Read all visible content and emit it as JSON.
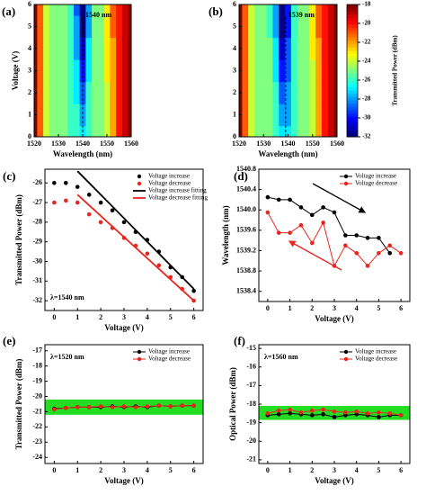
{
  "chart_data": [
    {
      "type": "heatmap",
      "panel": "(a)",
      "xlabel": "Wavelength (nm)",
      "ylabel": "Voltage (V)",
      "annotation": "1540 nm",
      "marker_x": 1540,
      "xlim": [
        1520,
        1560
      ],
      "xticks": [
        1520,
        1530,
        1540,
        1550,
        1560
      ],
      "ylim": [
        0,
        6
      ],
      "yticks": [
        0,
        1,
        2,
        3,
        4,
        5,
        6
      ],
      "colormap": "jet",
      "zlim": [
        -32,
        -18
      ],
      "x": [
        1520,
        1522.5,
        1525,
        1527.5,
        1530,
        1532.5,
        1535,
        1537.5,
        1540,
        1542.5,
        1545,
        1547.5,
        1550,
        1552.5,
        1555,
        1557.5,
        1560
      ],
      "y": [
        0,
        1,
        2,
        3,
        4,
        5,
        6
      ],
      "z": [
        [
          -18,
          -21,
          -24,
          -25,
          -25,
          -25,
          -26,
          -26,
          -27,
          -26,
          -25,
          -25,
          -24,
          -22,
          -20,
          -19,
          -18
        ],
        [
          -18,
          -21,
          -24,
          -25,
          -25,
          -25,
          -26,
          -26,
          -28,
          -26,
          -25,
          -25,
          -24,
          -22,
          -20,
          -19,
          -18
        ],
        [
          -18,
          -21,
          -24,
          -25,
          -25,
          -25,
          -26,
          -27,
          -29,
          -26,
          -25,
          -25,
          -24,
          -22,
          -20,
          -19,
          -18
        ],
        [
          -18,
          -21,
          -24,
          -25,
          -25,
          -25,
          -26,
          -27,
          -30,
          -27,
          -25,
          -25,
          -23,
          -22,
          -20,
          -19,
          -18
        ],
        [
          -18,
          -21,
          -24,
          -25,
          -25,
          -25,
          -26,
          -28,
          -31,
          -27,
          -25,
          -25,
          -23,
          -22,
          -20,
          -19,
          -18
        ],
        [
          -18,
          -21,
          -24,
          -25,
          -25,
          -25,
          -26,
          -28,
          -32,
          -28,
          -25,
          -25,
          -23,
          -21,
          -20,
          -19,
          -18
        ],
        [
          -18,
          -21,
          -24,
          -25,
          -25,
          -25,
          -26,
          -29,
          -32,
          -28,
          -25,
          -25,
          -23,
          -21,
          -20,
          -19,
          -18
        ]
      ]
    },
    {
      "type": "heatmap",
      "panel": "(b)",
      "xlabel": "Wavelength (nm)",
      "annotation": "1539 nm",
      "marker_x": 1539,
      "xlim": [
        1520,
        1560
      ],
      "xticks": [
        1520,
        1530,
        1540,
        1550,
        1560
      ],
      "ylim": [
        0,
        6
      ],
      "yticks": [
        0,
        1,
        2,
        3,
        4,
        5,
        6
      ],
      "colormap": "jet",
      "zlim": [
        -32,
        -18
      ],
      "colorbar_label": "Transmitted Power (dBm)",
      "zticks": [
        -18,
        -20,
        -22,
        -24,
        -26,
        -28,
        -30,
        -32
      ],
      "x": [
        1520,
        1522.5,
        1525,
        1527.5,
        1530,
        1532.5,
        1535,
        1537.5,
        1540,
        1542.5,
        1545,
        1547.5,
        1550,
        1552.5,
        1555,
        1557.5,
        1560
      ],
      "y": [
        0,
        1,
        2,
        3,
        4,
        5,
        6
      ],
      "z": [
        [
          -18,
          -21,
          -24,
          -25,
          -25,
          -25,
          -26,
          -27,
          -27,
          -26,
          -25,
          -25,
          -24,
          -22,
          -20,
          -19,
          -18
        ],
        [
          -18,
          -21,
          -24,
          -25,
          -25,
          -25,
          -26,
          -28,
          -28,
          -26,
          -25,
          -25,
          -24,
          -22,
          -20,
          -19,
          -18
        ],
        [
          -18,
          -21,
          -24,
          -25,
          -25,
          -25,
          -26,
          -29,
          -28,
          -26,
          -25,
          -25,
          -24,
          -22,
          -20,
          -19,
          -18
        ],
        [
          -18,
          -21,
          -24,
          -25,
          -25,
          -25,
          -27,
          -30,
          -29,
          -26,
          -25,
          -25,
          -24,
          -22,
          -20,
          -19,
          -18
        ],
        [
          -18,
          -21,
          -24,
          -25,
          -25,
          -25,
          -27,
          -31,
          -29,
          -26,
          -25,
          -25,
          -23,
          -22,
          -20,
          -19,
          -18
        ],
        [
          -18,
          -21,
          -24,
          -25,
          -25,
          -26,
          -28,
          -32,
          -30,
          -26,
          -25,
          -25,
          -23,
          -21,
          -20,
          -19,
          -18
        ],
        [
          -18,
          -21,
          -24,
          -25,
          -25,
          -26,
          -28,
          -32,
          -30,
          -26,
          -25,
          -25,
          -23,
          -21,
          -20,
          -19,
          -18
        ]
      ]
    },
    {
      "type": "line",
      "panel": "(c)",
      "xlabel": "Voltage (V)",
      "ylabel": "Transmitted Power (dBm)",
      "annotation": "λ=1540 nm",
      "legend": "upper right",
      "xlim": [
        -0.4,
        6.4
      ],
      "xticks": [
        0,
        1,
        2,
        3,
        4,
        5,
        6
      ],
      "ylim": [
        -32.5,
        -25.3
      ],
      "yticks": [
        -32,
        -31,
        -30,
        -29,
        -28,
        -27,
        -26
      ],
      "series": [
        {
          "name": "Voltage increase",
          "color": "#000000",
          "mode": "markers",
          "x": [
            0,
            0.5,
            1,
            1.5,
            2,
            2.5,
            3,
            3.5,
            4,
            4.5,
            5,
            5.5,
            6
          ],
          "values": [
            -26,
            -26,
            -26.2,
            -26.6,
            -27,
            -27.4,
            -28,
            -28.5,
            -28.9,
            -29.5,
            -30.3,
            -30.8,
            -31.5
          ]
        },
        {
          "name": "Voltage decrease",
          "color": "#e8251f",
          "mode": "markers",
          "x": [
            0,
            0.5,
            1,
            1.5,
            2,
            2.5,
            3,
            3.5,
            4,
            4.5,
            5,
            5.5,
            6
          ],
          "values": [
            -27,
            -26.9,
            -27,
            -27.6,
            -28,
            -28.3,
            -28.8,
            -29.2,
            -29.6,
            -30.2,
            -30.8,
            -31.4,
            -32
          ]
        },
        {
          "name": "Voltage increase fitting",
          "color": "#000000",
          "mode": "lines",
          "x": [
            1,
            6
          ],
          "values": [
            -25.4,
            -31.4
          ]
        },
        {
          "name": "Voltage decrease fitting",
          "color": "#e8251f",
          "mode": "lines",
          "x": [
            1,
            6
          ],
          "values": [
            -26.6,
            -32
          ]
        }
      ]
    },
    {
      "type": "line",
      "panel": "(d)",
      "xlabel": "Voltage (V)",
      "ylabel": "Wavelength (nm)",
      "legend": "upper right",
      "xlim": [
        -0.4,
        6.4
      ],
      "xticks": [
        0,
        1,
        2,
        3,
        4,
        5,
        6
      ],
      "ylim": [
        1538.2,
        1540.8
      ],
      "yticks": [
        1538.4,
        1538.8,
        1539.2,
        1539.6,
        {
          "value": 1540,
          "label": "1540.0"
        },
        1540.4,
        1540.8
      ],
      "series": [
        {
          "name": "Voltage increase",
          "color": "#000000",
          "mode": "lines+markers",
          "x": [
            0,
            0.5,
            1,
            1.5,
            2,
            2.5,
            3,
            3.5,
            4,
            4.5,
            5,
            5.5
          ],
          "values": [
            1540.25,
            1540.2,
            1540.2,
            1540.05,
            1539.9,
            1540.05,
            1539.95,
            1539.5,
            1539.5,
            1539.45,
            1539.45,
            1539.15
          ]
        },
        {
          "name": "Voltage decrease",
          "color": "#e8251f",
          "mode": "lines+markers",
          "x": [
            0,
            0.5,
            1,
            1.5,
            2,
            2.5,
            3,
            3.5,
            4,
            4.5,
            5,
            5.5,
            6
          ],
          "values": [
            1539.95,
            1539.55,
            1539.55,
            1539.7,
            1539.35,
            1539.75,
            1538.9,
            1539.3,
            1539.15,
            1538.9,
            1539.15,
            1539.3,
            1539.15
          ]
        }
      ]
    },
    {
      "type": "line",
      "panel": "(e)",
      "xlabel": "Voltage (V)",
      "ylabel": "Transmitted Power (dBm)",
      "annotation": "λ=1520 nm",
      "legend": "upper right",
      "band": [
        -21.2,
        -20.2
      ],
      "band_color": "#22dd22",
      "xlim": [
        -0.4,
        6.4
      ],
      "xticks": [
        0,
        1,
        2,
        3,
        4,
        5,
        6
      ],
      "ylim": [
        -24.4,
        -16.6
      ],
      "yticks": [
        -24,
        -23,
        -22,
        -21,
        -20,
        -19,
        -18,
        -17
      ],
      "series": [
        {
          "name": "Voltage increase",
          "color": "#000000",
          "mode": "lines+markers",
          "x": [
            0,
            0.5,
            1,
            1.5,
            2,
            2.5,
            3,
            3.5,
            4,
            4.5,
            5,
            5.5,
            6
          ],
          "values": [
            -20.8,
            -20.75,
            -20.7,
            -20.7,
            -20.7,
            -20.65,
            -20.7,
            -20.65,
            -20.7,
            -20.6,
            -20.65,
            -20.6,
            -20.6
          ]
        },
        {
          "name": "Voltage decrease",
          "color": "#e8251f",
          "mode": "lines+markers",
          "x": [
            0,
            0.5,
            1,
            1.5,
            2,
            2.5,
            3,
            3.5,
            4,
            4.5,
            5,
            5.5,
            6
          ],
          "values": [
            -20.85,
            -20.75,
            -20.7,
            -20.7,
            -20.65,
            -20.7,
            -20.65,
            -20.7,
            -20.65,
            -20.6,
            -20.65,
            -20.6,
            -20.6
          ]
        }
      ]
    },
    {
      "type": "line",
      "panel": "(f)",
      "xlabel": "Voltage (V)",
      "ylabel": "Optical Power (dBm)",
      "annotation": "λ=1560 nm",
      "legend": "upper right",
      "band": [
        -18.85,
        -18.1
      ],
      "band_color": "#22dd22",
      "xlim": [
        -0.4,
        6.4
      ],
      "xticks": [
        0,
        1,
        2,
        3,
        4,
        5,
        6
      ],
      "ylim": [
        -21.2,
        -14.8
      ],
      "yticks": [
        -21,
        -20,
        -19,
        -18,
        -17,
        -16,
        -15
      ],
      "series": [
        {
          "name": "Voltage increase",
          "color": "#000000",
          "mode": "lines+markers",
          "x": [
            0,
            0.5,
            1,
            1.5,
            2,
            2.5,
            3,
            3.5,
            4,
            4.5,
            5,
            5.5,
            6
          ],
          "values": [
            -18.6,
            -18.55,
            -18.5,
            -18.55,
            -18.6,
            -18.55,
            -18.7,
            -18.6,
            -18.55,
            -18.6,
            -18.7,
            -18.6,
            -18.6
          ]
        },
        {
          "name": "Voltage decrease",
          "color": "#e8251f",
          "mode": "lines+markers",
          "x": [
            0,
            0.5,
            1,
            1.5,
            2,
            2.5,
            3,
            3.5,
            4,
            4.5,
            5,
            5.5,
            6
          ],
          "values": [
            -18.5,
            -18.35,
            -18.3,
            -18.45,
            -18.35,
            -18.3,
            -18.4,
            -18.45,
            -18.4,
            -18.5,
            -18.45,
            -18.5,
            -18.6
          ]
        }
      ]
    }
  ]
}
